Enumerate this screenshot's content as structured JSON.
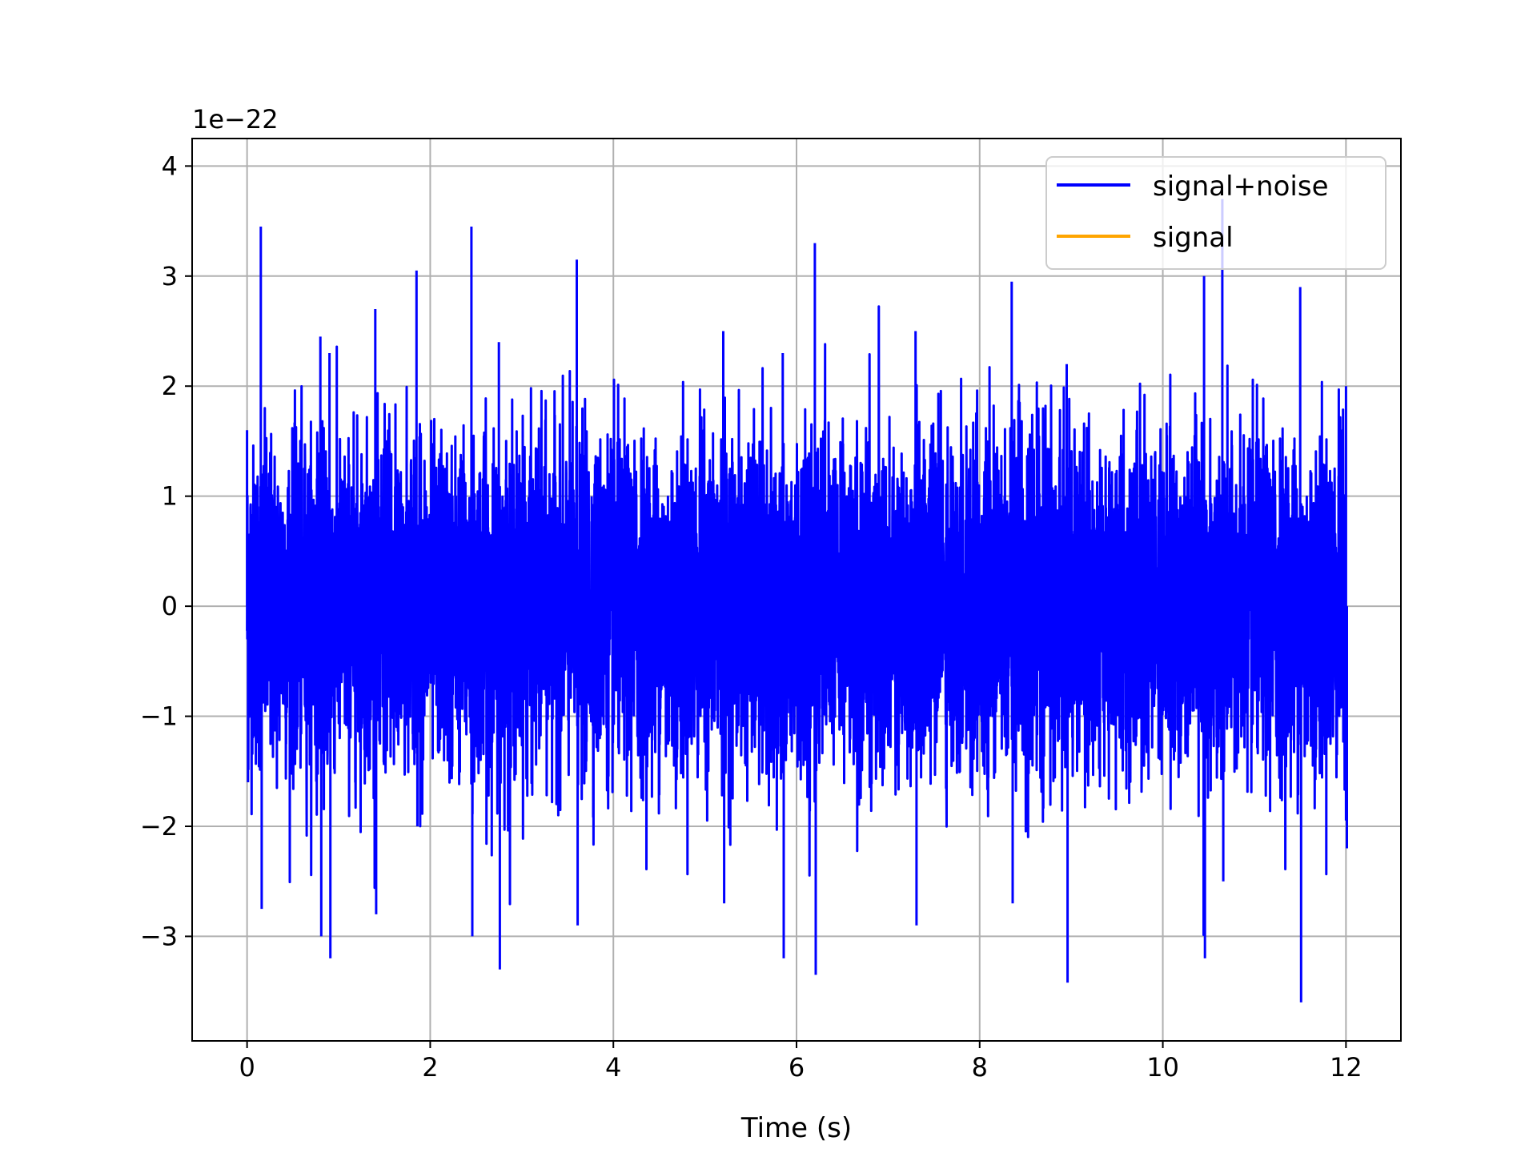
{
  "chart_data": {
    "type": "line",
    "title": "",
    "xlabel": "Time (s)",
    "ylabel": "",
    "offset_label": "1e−22",
    "xlim": [
      -0.6,
      12.6
    ],
    "ylim": [
      -3.95,
      4.25
    ],
    "x_ticks": [
      0,
      2,
      4,
      6,
      8,
      10,
      12
    ],
    "x_tick_labels": [
      "0",
      "2",
      "4",
      "6",
      "8",
      "10",
      "12"
    ],
    "y_ticks": [
      -3,
      -2,
      -1,
      0,
      1,
      2,
      3,
      4
    ],
    "y_tick_labels": [
      "−3",
      "−2",
      "−1",
      "0",
      "1",
      "2",
      "3",
      "4"
    ],
    "grid": true,
    "legend_position": "top-right",
    "series": [
      {
        "name": "signal+noise",
        "color": "#0000ff",
        "x_range": [
          0,
          12
        ],
        "y_range": [
          -3.6,
          3.7
        ],
        "envelope": [
          {
            "t": 0.0,
            "max": 1.6,
            "min": -1.6
          },
          {
            "t": 0.15,
            "max": 3.45,
            "min": -2.75
          },
          {
            "t": 0.8,
            "max": 2.45,
            "min": -3.0
          },
          {
            "t": 0.9,
            "max": 2.3,
            "min": -3.2
          },
          {
            "t": 1.4,
            "max": 2.7,
            "min": -2.8
          },
          {
            "t": 1.85,
            "max": 3.05,
            "min": -2.0
          },
          {
            "t": 2.45,
            "max": 3.45,
            "min": -3.0
          },
          {
            "t": 2.75,
            "max": 2.4,
            "min": -3.3
          },
          {
            "t": 3.6,
            "max": 3.15,
            "min": -2.9
          },
          {
            "t": 5.2,
            "max": 2.5,
            "min": -2.7
          },
          {
            "t": 5.85,
            "max": 2.3,
            "min": -3.2
          },
          {
            "t": 6.2,
            "max": 3.3,
            "min": -3.35
          },
          {
            "t": 7.3,
            "max": 2.5,
            "min": -2.9
          },
          {
            "t": 8.35,
            "max": 2.95,
            "min": -2.7
          },
          {
            "t": 8.95,
            "max": 2.2,
            "min": -3.42
          },
          {
            "t": 10.45,
            "max": 3.0,
            "min": -3.2
          },
          {
            "t": 10.65,
            "max": 3.7,
            "min": -2.5
          },
          {
            "t": 11.5,
            "max": 2.9,
            "min": -3.6
          },
          {
            "t": 12.0,
            "max": 2.0,
            "min": -2.2
          }
        ]
      },
      {
        "name": "signal",
        "color": "#ffa500",
        "values": []
      }
    ]
  }
}
